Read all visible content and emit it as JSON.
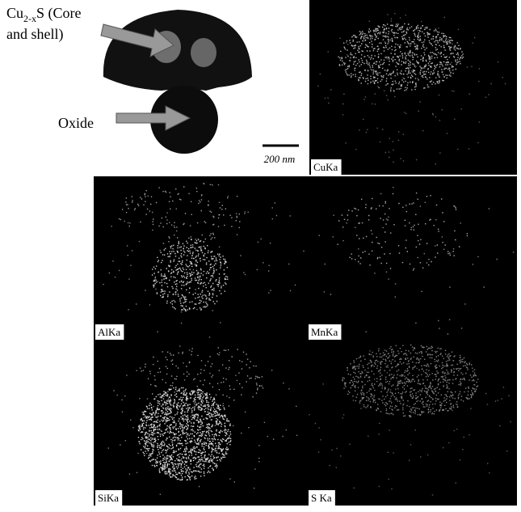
{
  "figure": {
    "top_label": {
      "element": "Cu",
      "subscript": "2-x",
      "rest": "S (Core",
      "line2": "and shell)"
    },
    "oxide_label": "Oxide",
    "scale_bar": "200 nm",
    "panels": [
      "CuKa",
      "AlKa",
      "MnKa",
      "SiKa",
      "S Ka"
    ]
  }
}
